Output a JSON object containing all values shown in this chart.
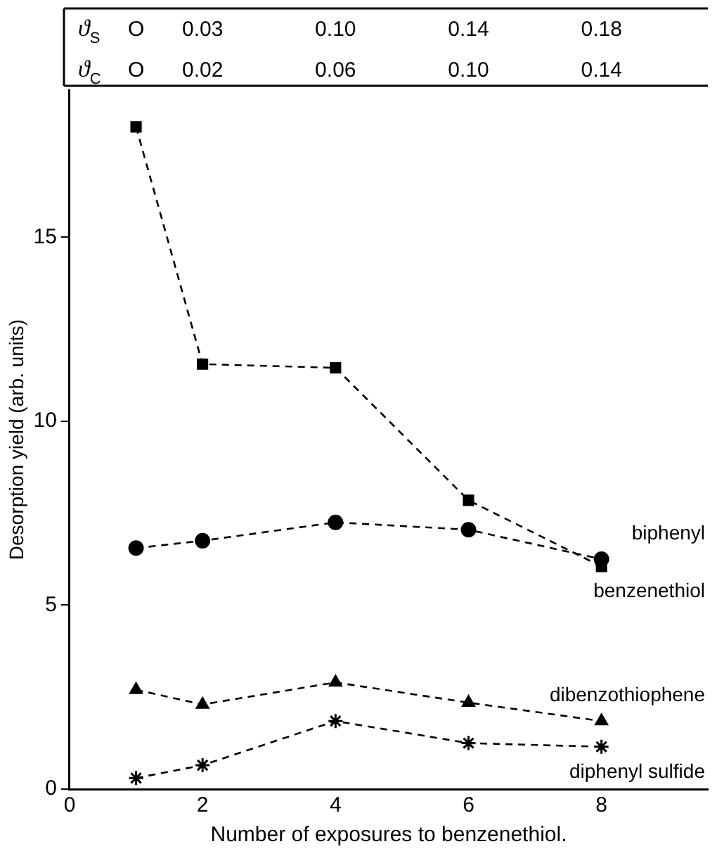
{
  "chart_data": {
    "type": "line",
    "xlabel": "Number of exposures to benzenethiol.",
    "ylabel": "Desorption yield (arb. units)",
    "x": [
      1,
      2,
      4,
      6,
      8
    ],
    "xlim": [
      0,
      9.6
    ],
    "xticks": [
      0,
      2,
      4,
      6,
      8
    ],
    "ylim": [
      0,
      19
    ],
    "yticks": [
      0,
      5,
      10,
      15
    ],
    "annotations": [
      "ϑ$_{S}$",
      "O",
      "0.03",
      "0.10",
      "0.14",
      "0.18",
      "ϑ$_{C}$",
      "O",
      "0.02",
      "0.06",
      "0.10",
      "0.14"
    ],
    "line_style": "dashed",
    "grid": false,
    "legend": false,
    "series": [
      {
        "name": "biphenyl",
        "color": "#000000",
        "marker": "circle",
        "values": [
          6.55,
          6.75,
          7.25,
          7.05,
          6.25
        ]
      },
      {
        "name": "benzenethiol",
        "color": "#000000",
        "marker": "square",
        "values": [
          18.0,
          11.55,
          11.45,
          7.85,
          6.05
        ]
      },
      {
        "name": "dibenzothiophene",
        "color": "#000000",
        "marker": "triangle",
        "values": [
          2.7,
          2.3,
          2.9,
          2.35,
          1.85
        ]
      },
      {
        "name": "diphenyl sulfide",
        "color": "#000000",
        "marker": "cross",
        "values": [
          0.3,
          0.65,
          1.85,
          1.25,
          1.15
        ]
      }
    ]
  }
}
